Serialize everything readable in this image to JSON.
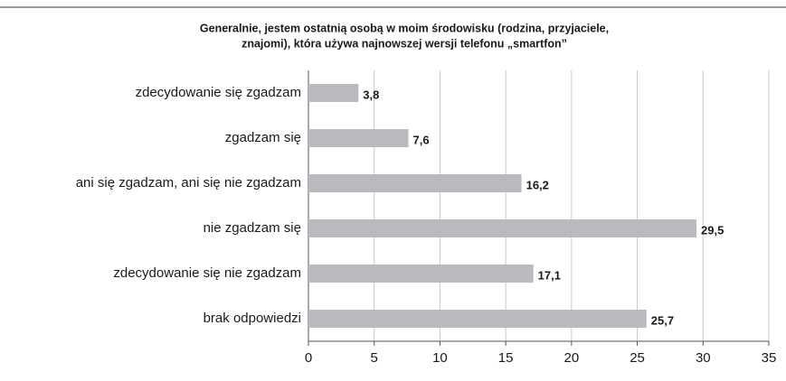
{
  "chart_data": {
    "type": "barh",
    "title": [
      "Generalnie, jestem ostatnią osobą w moim środowisku (rodzina, przyjaciele,",
      "znajomi), która używa najnowszej wersji telefonu „smartfon”"
    ],
    "categories": [
      "zdecydowanie się zgadzam",
      "zgadzam się",
      "ani się zgadzam, ani się nie zgadzam",
      "nie zgadzam się",
      "zdecydowanie się nie zgadzam",
      "brak odpowiedzi"
    ],
    "values": [
      3.8,
      7.6,
      16.2,
      29.5,
      17.1,
      25.7
    ],
    "value_labels": [
      "3,8",
      "7,6",
      "16,2",
      "29,5",
      "17,1",
      "25,7"
    ],
    "color": "#b9babd",
    "xlim": [
      0,
      35
    ],
    "xticks": [
      0,
      5,
      10,
      15,
      20,
      25,
      30,
      35
    ],
    "grid": true
  }
}
